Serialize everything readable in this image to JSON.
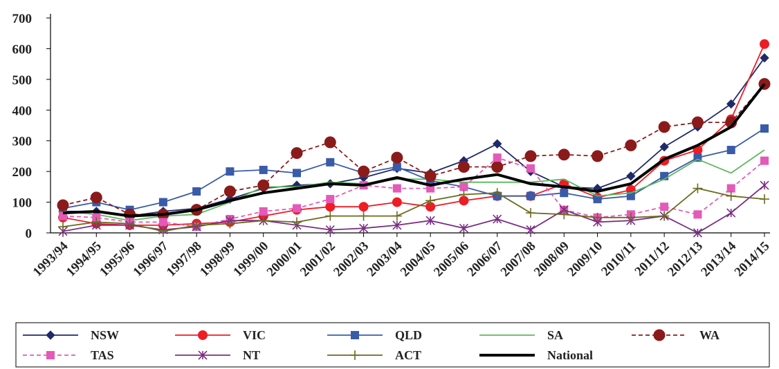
{
  "chart_data": {
    "type": "line",
    "title": "",
    "xlabel": "",
    "ylabel": "",
    "ylim": [
      0,
      700
    ],
    "yticks": [
      0,
      100,
      200,
      300,
      400,
      500,
      600,
      700
    ],
    "grid": false,
    "legend_position": "bottom",
    "categories": [
      "1993/94",
      "1994/95",
      "1995/96",
      "1996/97",
      "1997/98",
      "1998/99",
      "1999/00",
      "2000/01",
      "2001/02",
      "2002/03",
      "2003/04",
      "2004/05",
      "2005/06",
      "2006/07",
      "2007/08",
      "2008/09",
      "2009/10",
      "2010/11",
      "2011/12",
      "2012/13",
      "2013/14",
      "2014/15"
    ],
    "series": [
      {
        "name": "NSW",
        "color": "#1f2a6b",
        "dash": "solid",
        "marker": "diamond",
        "width": 1.8,
        "values": [
          70,
          70,
          55,
          70,
          80,
          110,
          145,
          155,
          160,
          180,
          210,
          195,
          235,
          290,
          200,
          150,
          145,
          185,
          280,
          345,
          420,
          570
        ]
      },
      {
        "name": "VIC",
        "color": "#ee1c25",
        "dash": "solid",
        "marker": "circle",
        "width": 1.8,
        "values": [
          50,
          30,
          25,
          25,
          30,
          35,
          55,
          75,
          85,
          85,
          100,
          85,
          105,
          120,
          120,
          160,
          115,
          140,
          235,
          270,
          370,
          615
        ]
      },
      {
        "name": "QLD",
        "color": "#3a5ba8",
        "dash": "solid",
        "marker": "square",
        "width": 1.8,
        "values": [
          80,
          100,
          75,
          100,
          135,
          200,
          205,
          195,
          230,
          195,
          215,
          170,
          150,
          120,
          120,
          130,
          110,
          120,
          185,
          245,
          270,
          340
        ]
      },
      {
        "name": "SA",
        "color": "#5cb85c",
        "dash": "solid",
        "marker": "none",
        "width": 1.8,
        "values": [
          70,
          60,
          40,
          55,
          60,
          100,
          150,
          150,
          165,
          160,
          175,
          175,
          165,
          165,
          165,
          175,
          120,
          130,
          175,
          240,
          195,
          270
        ]
      },
      {
        "name": "WA",
        "color": "#8b1a1a",
        "dash": "dashed",
        "marker": "circle-big",
        "width": 1.8,
        "values": [
          90,
          115,
          60,
          60,
          75,
          135,
          155,
          260,
          295,
          200,
          245,
          185,
          215,
          215,
          250,
          255,
          250,
          285,
          345,
          360,
          360,
          485
        ]
      },
      {
        "name": "TAS",
        "color": "#e35ab8",
        "dash": "dashed",
        "marker": "square",
        "width": 1.8,
        "values": [
          55,
          50,
          35,
          35,
          20,
          45,
          70,
          80,
          110,
          155,
          145,
          145,
          150,
          245,
          210,
          75,
          50,
          60,
          85,
          60,
          145,
          235
        ]
      },
      {
        "name": "NT",
        "color": "#7b2c84",
        "dash": "solid",
        "marker": "star",
        "width": 1.8,
        "values": [
          5,
          25,
          25,
          10,
          20,
          40,
          40,
          25,
          10,
          15,
          25,
          40,
          15,
          45,
          10,
          75,
          35,
          40,
          55,
          0,
          65,
          155
        ]
      },
      {
        "name": "ACT",
        "color": "#6b6b1e",
        "dash": "solid",
        "marker": "plus",
        "width": 1.8,
        "values": [
          20,
          35,
          30,
          5,
          25,
          30,
          40,
          35,
          55,
          55,
          55,
          105,
          125,
          130,
          65,
          60,
          50,
          50,
          55,
          145,
          120,
          110
        ]
      },
      {
        "name": "National",
        "color": "#000000",
        "dash": "solid",
        "marker": "none",
        "width": 4,
        "values": [
          65,
          70,
          55,
          60,
          75,
          105,
          130,
          145,
          160,
          155,
          180,
          155,
          175,
          190,
          160,
          150,
          135,
          160,
          240,
          285,
          345,
          485
        ]
      }
    ]
  }
}
